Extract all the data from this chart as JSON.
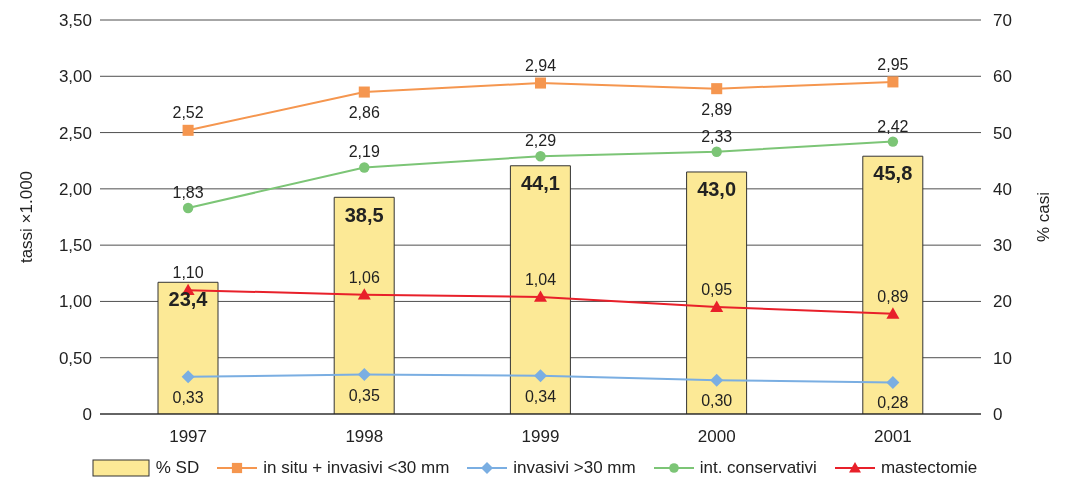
{
  "chart_data": {
    "type": "bar",
    "categories": [
      "1997",
      "1998",
      "1999",
      "2000",
      "2001"
    ],
    "ylabel": "tassi ×1.000",
    "y2label": "% casi",
    "ylim": [
      0,
      3.5
    ],
    "yticks": [
      {
        "value": 0,
        "label": "0"
      },
      {
        "value": 0.5,
        "label": "0,50"
      },
      {
        "value": 1,
        "label": "1,00"
      },
      {
        "value": 1.5,
        "label": "1,50"
      },
      {
        "value": 2,
        "label": "2,00"
      },
      {
        "value": 2.5,
        "label": "2,50"
      },
      {
        "value": 3,
        "label": "3,00"
      },
      {
        "value": 3.5,
        "label": "3,50"
      }
    ],
    "y2lim": [
      0,
      70
    ],
    "y2ticks": [
      0,
      10,
      20,
      30,
      40,
      50,
      60,
      70
    ],
    "grid": "y",
    "legend": "bottom",
    "series": [
      {
        "name": "% SD",
        "axis": "y2",
        "color": "#fce996",
        "values": [
          23.4,
          38.5,
          44.1,
          43.0,
          45.8
        ],
        "value_labels": [
          "23,4",
          "38,5",
          "44,1",
          "43,0",
          "45,8"
        ]
      },
      {
        "name": "in situ + invasivi <30 mm",
        "type": "line",
        "marker": "square",
        "color": "#f5964f",
        "values": [
          2.52,
          2.86,
          2.94,
          2.89,
          2.95
        ],
        "value_labels": [
          "2,52",
          "2,86",
          "2,94",
          "2,89",
          "2,95"
        ]
      },
      {
        "name": "invasivi >30 mm",
        "type": "line",
        "marker": "diamond",
        "color": "#7aaee2",
        "values": [
          0.33,
          0.35,
          0.34,
          0.3,
          0.28
        ],
        "value_labels": [
          "0,33",
          "0,35",
          "0,34",
          "0,30",
          "0,28"
        ]
      },
      {
        "name": "int. conservativi",
        "type": "line",
        "marker": "circle",
        "color": "#7cc576",
        "values": [
          1.83,
          2.19,
          2.29,
          2.33,
          2.42
        ],
        "value_labels": [
          "1,83",
          "2,19",
          "2,29",
          "2,33",
          "2,42"
        ]
      },
      {
        "name": "mastectomie",
        "type": "line",
        "marker": "triangle",
        "color": "#e8202a",
        "values": [
          1.1,
          1.06,
          1.04,
          0.95,
          0.89
        ],
        "value_labels": [
          "1,10",
          "1,06",
          "1,04",
          "0,95",
          "0,89"
        ]
      }
    ]
  }
}
